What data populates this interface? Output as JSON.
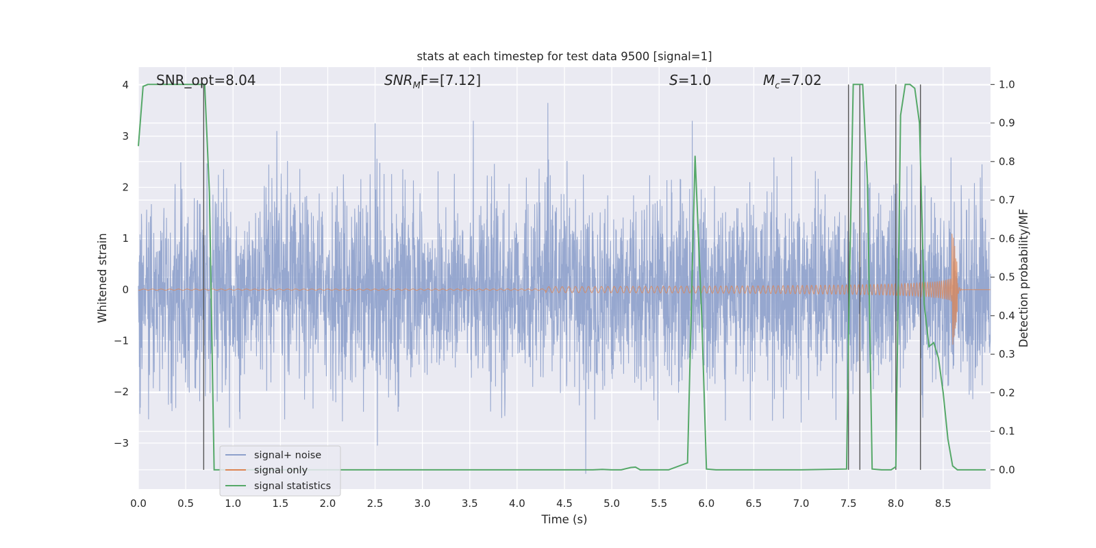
{
  "chart_data": {
    "type": "line",
    "title": "stats at each timestep for test data 9500 [signal=1]",
    "xlabel": "Time (s)",
    "ylabel_left": "Whitened strain",
    "ylabel_right": "Detection probability/MF",
    "xlim": [
      0,
      9.0
    ],
    "ylim_left": [
      -3.9,
      4.35
    ],
    "ylim_right": [
      -0.05,
      1.045
    ],
    "grid": true,
    "legend_position": "lower-left",
    "x_ticks": [
      "0.0",
      "0.5",
      "1.0",
      "1.5",
      "2.0",
      "2.5",
      "3.0",
      "3.5",
      "4.0",
      "4.5",
      "5.0",
      "5.5",
      "6.0",
      "6.5",
      "7.0",
      "7.5",
      "8.0",
      "8.5"
    ],
    "y_ticks_left": [
      "4",
      "3",
      "2",
      "1",
      "0",
      "−1",
      "−2",
      "−3"
    ],
    "y_ticks_right": [
      "1.0",
      "0.9",
      "0.8",
      "0.7",
      "0.6",
      "0.5",
      "0.4",
      "0.3",
      "0.2",
      "0.1",
      "0.0"
    ],
    "annotations": {
      "snr_opt": "SNR_opt=8.04",
      "snr_mf_base": "SNR",
      "snr_mf_sub": "M",
      "snr_mf_rest": "F=[7.12]",
      "s_italic": "S",
      "s_rest": "=1.0",
      "mc_base": "M",
      "mc_sub": "c",
      "mc_rest": "=7.02"
    },
    "series": [
      {
        "name": "signal+ noise",
        "color": "#8da0cb",
        "description_values": {
          "typical_range": [
            -1.9,
            1.9
          ],
          "max_peak": 3.65,
          "min_peak": -3.6
        }
      },
      {
        "name": "signal only",
        "color": "#dd8452",
        "chirp_end_time": 8.65,
        "chirp_peak_amplitude": 0.95
      },
      {
        "name": "signal statistics",
        "color": "#55a868",
        "axis": "right",
        "x": [
          0.0,
          0.05,
          0.1,
          0.2,
          0.3,
          0.4,
          0.5,
          0.6,
          0.7,
          0.75,
          0.8,
          0.85,
          1.0,
          2.0,
          3.0,
          4.0,
          4.8,
          4.9,
          5.0,
          5.1,
          5.2,
          5.25,
          5.3,
          5.4,
          5.6,
          5.8,
          5.88,
          5.95,
          6.0,
          6.1,
          7.0,
          7.48,
          7.5,
          7.55,
          7.6,
          7.65,
          7.7,
          7.75,
          7.85,
          7.95,
          8.0,
          8.05,
          8.1,
          8.15,
          8.2,
          8.25,
          8.3,
          8.35,
          8.4,
          8.45,
          8.5,
          8.55,
          8.6,
          8.65,
          8.7,
          8.8,
          8.95
        ],
        "y": [
          0.84,
          0.995,
          1.0,
          1.0,
          1.0,
          1.0,
          1.0,
          1.0,
          1.0,
          0.72,
          0.0,
          0.0,
          0.0,
          0.0,
          0.0,
          0.0,
          0.0,
          0.001,
          0.0,
          0.0,
          0.006,
          0.007,
          0.0,
          0.0,
          0.0,
          0.018,
          0.815,
          0.4,
          0.002,
          0.0,
          0.0,
          0.002,
          0.35,
          1.0,
          1.0,
          1.0,
          0.75,
          0.002,
          0.0,
          0.0,
          0.008,
          0.92,
          1.0,
          1.0,
          0.99,
          0.9,
          0.43,
          0.32,
          0.33,
          0.29,
          0.2,
          0.08,
          0.01,
          0.0,
          0.0,
          0.0,
          0.0
        ]
      },
      {
        "name": "detection markers",
        "color": "#555555",
        "x": [
          0.69,
          7.5,
          7.62,
          8.0,
          8.26
        ]
      }
    ]
  }
}
